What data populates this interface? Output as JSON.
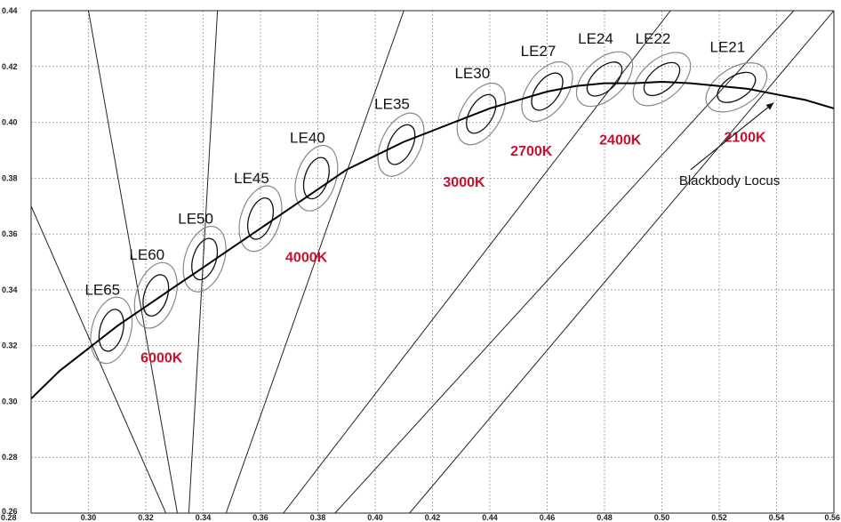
{
  "chart_data": {
    "type": "scatter",
    "xlim": [
      0.28,
      0.56
    ],
    "ylim": [
      0.26,
      0.44
    ],
    "x_ticks": [
      "0.28",
      "0.30",
      "0.32",
      "0.34",
      "0.36",
      "0.38",
      "0.40",
      "0.42",
      "0.44",
      "0.46",
      "0.48",
      "0.50",
      "0.52",
      "0.54",
      "0.56"
    ],
    "y_ticks": [
      "0.26",
      "0.28",
      "0.30",
      "0.32",
      "0.34",
      "0.36",
      "0.38",
      "0.40",
      "0.42",
      "0.44"
    ],
    "grid": true,
    "locus": {
      "name": "Blackbody Locus",
      "points": [
        [
          0.28,
          0.301
        ],
        [
          0.29,
          0.311
        ],
        [
          0.3,
          0.319
        ],
        [
          0.31,
          0.327
        ],
        [
          0.32,
          0.334
        ],
        [
          0.33,
          0.341
        ],
        [
          0.34,
          0.348
        ],
        [
          0.35,
          0.355
        ],
        [
          0.36,
          0.362
        ],
        [
          0.37,
          0.369
        ],
        [
          0.38,
          0.376
        ],
        [
          0.39,
          0.383
        ],
        [
          0.4,
          0.388
        ],
        [
          0.41,
          0.393
        ],
        [
          0.42,
          0.397
        ],
        [
          0.43,
          0.401
        ],
        [
          0.44,
          0.405
        ],
        [
          0.45,
          0.408
        ],
        [
          0.46,
          0.411
        ],
        [
          0.47,
          0.413
        ],
        [
          0.48,
          0.414
        ],
        [
          0.49,
          0.414
        ],
        [
          0.5,
          0.4145
        ],
        [
          0.51,
          0.414
        ],
        [
          0.52,
          0.413
        ],
        [
          0.53,
          0.412
        ],
        [
          0.54,
          0.41
        ],
        [
          0.55,
          0.408
        ],
        [
          0.56,
          0.405
        ]
      ]
    },
    "ellipses": [
      {
        "label": "LE65",
        "x": 0.308,
        "y": 0.3255
      },
      {
        "label": "LE60",
        "x": 0.3235,
        "y": 0.338
      },
      {
        "label": "LE50",
        "x": 0.3405,
        "y": 0.351
      },
      {
        "label": "LE45",
        "x": 0.36,
        "y": 0.3655
      },
      {
        "label": "LE40",
        "x": 0.3795,
        "y": 0.38
      },
      {
        "label": "LE35",
        "x": 0.409,
        "y": 0.392
      },
      {
        "label": "LE30",
        "x": 0.437,
        "y": 0.403
      },
      {
        "label": "LE27",
        "x": 0.46,
        "y": 0.411
      },
      {
        "label": "LE24",
        "x": 0.48,
        "y": 0.4155
      },
      {
        "label": "LE22",
        "x": 0.5,
        "y": 0.4155
      },
      {
        "label": "LE21",
        "x": 0.526,
        "y": 0.4125
      }
    ],
    "isotherms": [
      {
        "label": "6000K",
        "from": [
          0.28,
          0.37
        ],
        "to": [
          0.327,
          0.26
        ]
      },
      {
        "label": "6000K-b",
        "from": [
          0.3,
          0.44
        ],
        "to": [
          0.331,
          0.26
        ]
      },
      {
        "label": "4000K",
        "from": [
          0.345,
          0.44
        ],
        "to": [
          0.335,
          0.26
        ]
      },
      {
        "label": "4000K-b",
        "from": [
          0.41,
          0.44
        ],
        "to": [
          0.348,
          0.26
        ]
      },
      {
        "label": "3000K",
        "from": [
          0.503,
          0.44
        ],
        "to": [
          0.368,
          0.26
        ]
      },
      {
        "label": "2700K",
        "from": [
          0.546,
          0.44
        ],
        "to": [
          0.386,
          0.26
        ]
      },
      {
        "label": "2400K",
        "from": [
          0.56,
          0.44
        ],
        "to": [
          0.412,
          0.26
        ]
      }
    ],
    "cct_labels": [
      {
        "text": "6000K",
        "x": 0.3255,
        "y": 0.314
      },
      {
        "text": "4000K",
        "x": 0.376,
        "y": 0.35
      },
      {
        "text": "3000K",
        "x": 0.431,
        "y": 0.377
      },
      {
        "text": "2700K",
        "x": 0.4545,
        "y": 0.388
      },
      {
        "text": "2400K",
        "x": 0.4855,
        "y": 0.392
      },
      {
        "text": "2100K",
        "x": 0.529,
        "y": 0.393
      }
    ],
    "annotation": {
      "text": "Blackbody Locus",
      "text_x": 0.506,
      "text_y": 0.3775,
      "arrow_from": [
        0.51,
        0.383
      ],
      "arrow_to": [
        0.539,
        0.407
      ]
    }
  },
  "colors": {
    "grid": "#888888",
    "axis": "#222222",
    "ellipse_inner": "#111111",
    "ellipse_outer": "#888888",
    "cct": "#c8102e",
    "locus": "#000000"
  }
}
